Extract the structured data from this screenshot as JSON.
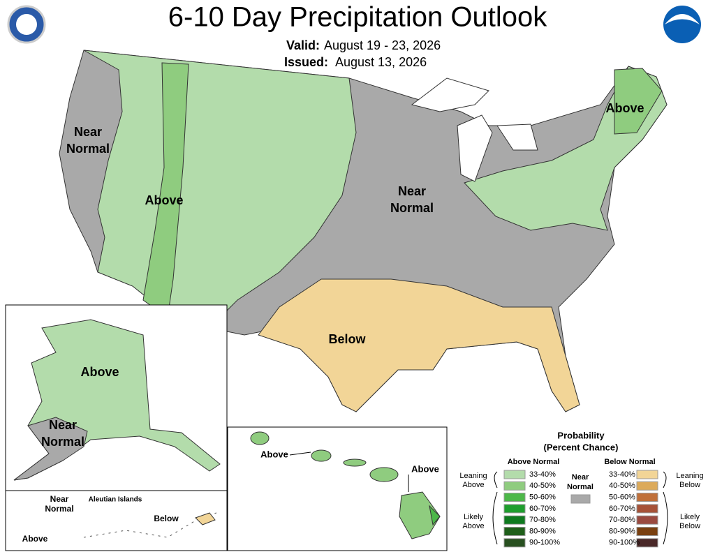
{
  "header": {
    "title": "6-10 Day Precipitation Outlook",
    "valid_label": "Valid:",
    "valid_date": "August 19 - 23, 2026",
    "issued_label": "Issued:",
    "issued_date": "August 13, 2026"
  },
  "map_labels": {
    "west_near_normal": [
      "Near",
      "Normal"
    ],
    "west_above": "Above",
    "central_near_normal": [
      "Near",
      "Normal"
    ],
    "northeast_above": "Above",
    "south_below": "Below",
    "alaska_above": "Above",
    "alaska_near_normal": [
      "Near",
      "Normal"
    ],
    "aleutian_near_normal": [
      "Near",
      "Normal"
    ],
    "aleutian_title": "Aleutian Islands",
    "aleutian_below": "Below",
    "aleutian_above": "Above",
    "hawaii_above_west": "Above",
    "hawaii_above_east": "Above"
  },
  "legend": {
    "title": [
      "Probability",
      "(Percent Chance)"
    ],
    "above_title": "Above Normal",
    "below_title": "Below Normal",
    "above": [
      {
        "range": "33-40%",
        "color": "#b3dcab"
      },
      {
        "range": "40-50%",
        "color": "#8fcc7f"
      },
      {
        "range": "50-60%",
        "color": "#4db849"
      },
      {
        "range": "60-70%",
        "color": "#1f9e2e"
      },
      {
        "range": "70-80%",
        "color": "#0f7a1f"
      },
      {
        "range": "80-90%",
        "color": "#1f5f1a"
      },
      {
        "range": "90-100%",
        "color": "#285020"
      }
    ],
    "below": [
      {
        "range": "33-40%",
        "color": "#f2d597"
      },
      {
        "range": "40-50%",
        "color": "#dcaa5a"
      },
      {
        "range": "50-60%",
        "color": "#c0703a"
      },
      {
        "range": "60-70%",
        "color": "#a65238"
      },
      {
        "range": "70-80%",
        "color": "#9a4a40"
      },
      {
        "range": "80-90%",
        "color": "#7a4010"
      },
      {
        "range": "90-100%",
        "color": "#4a2828"
      }
    ],
    "leaning_above": [
      "Leaning",
      "Above"
    ],
    "likely_above": [
      "Likely",
      "Above"
    ],
    "near_normal": [
      "Near",
      "Normal"
    ],
    "near_normal_color": "#a9a9a9",
    "leaning_below": [
      "Leaning",
      "Below"
    ],
    "likely_below": [
      "Likely",
      "Below"
    ]
  }
}
